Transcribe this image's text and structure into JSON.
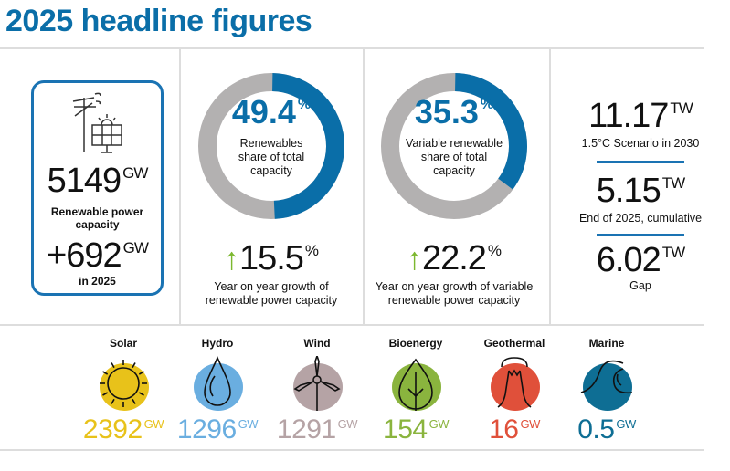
{
  "title": "2025 headline figures",
  "capacity": {
    "value": "5149",
    "unit": "GW",
    "label": "Renewable power capacity",
    "added": "+692",
    "added_unit": "GW",
    "added_label": "in 2025",
    "icon": "wind-solar-icon"
  },
  "donuts": [
    {
      "value": "49.4",
      "unit": "%",
      "share": 49.4,
      "label": [
        "Renewables",
        "share of total",
        "capacity"
      ],
      "growth": "15.5",
      "growth_unit": "%",
      "growth_label": [
        "Year on year growth of",
        "renewable power capacity"
      ]
    },
    {
      "value": "35.3",
      "unit": "%",
      "share": 35.3,
      "label": [
        "Variable renewable",
        "share of total",
        "capacity"
      ],
      "growth": "22.2",
      "growth_unit": "%",
      "growth_label": [
        "Year on year growth of variable",
        "renewable power capacity"
      ]
    }
  ],
  "targets": [
    {
      "value": "11.17",
      "unit": "TW",
      "label": "1.5°C Scenario in 2030"
    },
    {
      "value": "5.15",
      "unit": "TW",
      "label": "End of 2025, cumulative"
    },
    {
      "value": "6.02",
      "unit": "TW",
      "label": "Gap"
    }
  ],
  "technologies": [
    {
      "name": "Solar",
      "value": "2392",
      "unit": "GW",
      "color": "#e8c21a",
      "icon": "sun-icon"
    },
    {
      "name": "Hydro",
      "value": "1296",
      "unit": "GW",
      "color": "#6aaee0",
      "icon": "water-drop-icon"
    },
    {
      "name": "Wind",
      "value": "1291",
      "unit": "GW",
      "color": "#b5a3a5",
      "icon": "wind-turbine-icon"
    },
    {
      "name": "Bioenergy",
      "value": "154",
      "unit": "GW",
      "color": "#8ab43e",
      "icon": "leaf-icon"
    },
    {
      "name": "Geothermal",
      "value": "16",
      "unit": "GW",
      "color": "#e0503a",
      "icon": "volcano-icon"
    },
    {
      "name": "Marine",
      "value": "0.5",
      "unit": "GW",
      "color": "#0e6e94",
      "icon": "wave-icon"
    }
  ],
  "colors": {
    "accent": "#0a6ea8",
    "donut_rest": "#b3b1b1",
    "growth_arrow": "#7cb82f"
  }
}
